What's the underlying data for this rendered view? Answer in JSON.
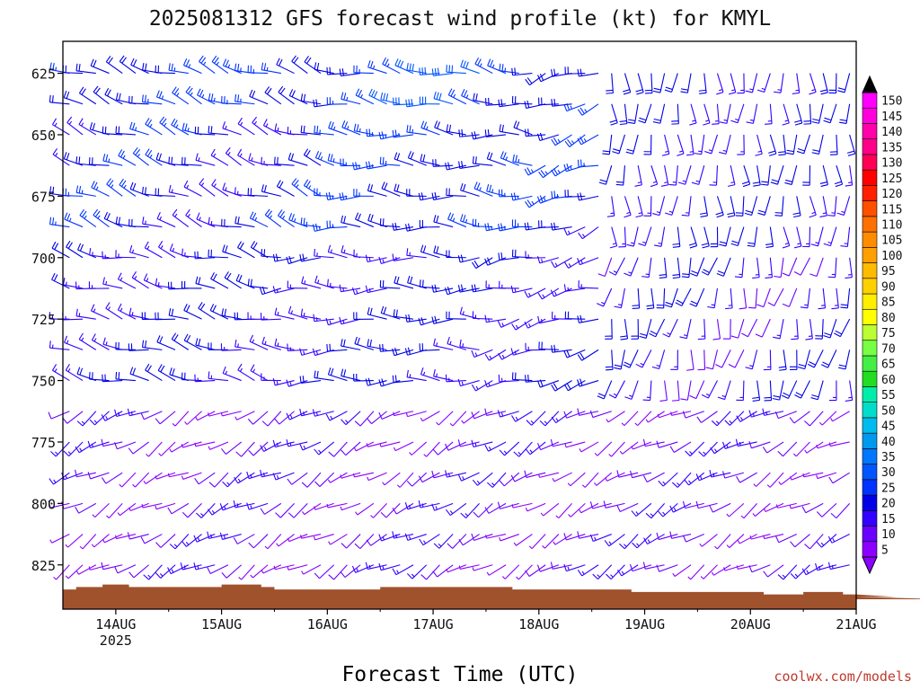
{
  "chart_data": {
    "type": "wind_barb_time_height",
    "title": "2025081312 GFS forecast wind profile (kt) for KMYL",
    "xlabel": "Forecast Time (UTC)",
    "ylabel": "",
    "credit": "coolwx.com/models",
    "units": "kt",
    "y_levels_hpa": [
      625,
      650,
      675,
      700,
      725,
      750,
      775,
      800,
      825
    ],
    "x_ticks": [
      {
        "label": "14AUG",
        "sublabel": "2025",
        "day": 1
      },
      {
        "label": "15AUG",
        "sublabel": "",
        "day": 2
      },
      {
        "label": "16AUG",
        "sublabel": "",
        "day": 3
      },
      {
        "label": "17AUG",
        "sublabel": "",
        "day": 4
      },
      {
        "label": "18AUG",
        "sublabel": "",
        "day": 5
      },
      {
        "label": "19AUG",
        "sublabel": "",
        "day": 6
      },
      {
        "label": "20AUG",
        "sublabel": "",
        "day": 7
      },
      {
        "label": "21AUG",
        "sublabel": "",
        "day": 8
      }
    ],
    "xlim_days": [
      0.5,
      8.0
    ],
    "ylim_hpa": [
      612,
      843
    ],
    "timestep_hours": 3,
    "colorbar": {
      "labels": [
        5,
        10,
        15,
        20,
        25,
        30,
        35,
        40,
        45,
        50,
        55,
        60,
        65,
        70,
        75,
        80,
        85,
        90,
        95,
        100,
        105,
        110,
        115,
        120,
        125,
        130,
        135,
        140,
        145,
        150
      ],
      "colors": [
        "#8b00ff",
        "#6a00ff",
        "#3300ff",
        "#0000e6",
        "#0033ff",
        "#0055ff",
        "#0077ff",
        "#0099ee",
        "#00bbee",
        "#00ddcc",
        "#00eeaa",
        "#22dd22",
        "#44ee44",
        "#77ff44",
        "#bbff33",
        "#ffff00",
        "#ffee00",
        "#ffd000",
        "#ffbb00",
        "#ffa000",
        "#ff8c00",
        "#ff7000",
        "#ff5000",
        "#ff2000",
        "#ff0000",
        "#ff0055",
        "#ff0088",
        "#ff00aa",
        "#ff00dd",
        "#ff00ff"
      ],
      "arrow_top": "#000000",
      "arrow_bottom": "#8b00ff"
    },
    "terrain": {
      "color": "#a0522d",
      "pressure_hpa": [
        835,
        834,
        834,
        833,
        833,
        834,
        834,
        834,
        834,
        834,
        834,
        834,
        833,
        833,
        833,
        834,
        835,
        835,
        835,
        835,
        835,
        835,
        835,
        835,
        834,
        834,
        834,
        834,
        834,
        834,
        834,
        834,
        834,
        834,
        835,
        835,
        835,
        835,
        835,
        835,
        835,
        835,
        835,
        836,
        836,
        836,
        836,
        836,
        836,
        836,
        836,
        836,
        836,
        837,
        837,
        837,
        836,
        836,
        836,
        837,
        837,
        837,
        837,
        838,
        838,
        838,
        838,
        839,
        839
      ]
    },
    "wind_regimes": [
      {
        "days": [
          0.5,
          3.0
        ],
        "p": [
          612,
          640
        ],
        "dir": 290,
        "speed": 25
      },
      {
        "days": [
          3.0,
          5.0
        ],
        "p": [
          612,
          640
        ],
        "dir": 280,
        "speed": 28
      },
      {
        "days": [
          5.0,
          5.6
        ],
        "p": [
          612,
          640
        ],
        "dir": 250,
        "speed": 25
      },
      {
        "days": [
          5.6,
          8.0
        ],
        "p": [
          612,
          640
        ],
        "dir": 180,
        "speed": 20
      },
      {
        "days": [
          0.5,
          3.0
        ],
        "p": [
          640,
          690
        ],
        "dir": 290,
        "speed": 22
      },
      {
        "days": [
          3.0,
          5.0
        ],
        "p": [
          640,
          690
        ],
        "dir": 275,
        "speed": 25
      },
      {
        "days": [
          5.0,
          5.6
        ],
        "p": [
          640,
          690
        ],
        "dir": 250,
        "speed": 22
      },
      {
        "days": [
          5.6,
          8.0
        ],
        "p": [
          640,
          690
        ],
        "dir": 180,
        "speed": 20
      },
      {
        "days": [
          0.5,
          2.5
        ],
        "p": [
          690,
          760
        ],
        "dir": 285,
        "speed": 20
      },
      {
        "days": [
          2.5,
          4.5
        ],
        "p": [
          690,
          760
        ],
        "dir": 270,
        "speed": 20
      },
      {
        "days": [
          4.5,
          5.6
        ],
        "p": [
          690,
          760
        ],
        "dir": 255,
        "speed": 20
      },
      {
        "days": [
          5.6,
          8.0
        ],
        "p": [
          690,
          760
        ],
        "dir": 190,
        "speed": 18
      },
      {
        "days": [
          0.5,
          8.0
        ],
        "p": [
          760,
          843
        ],
        "dir": 240,
        "speed": 12
      }
    ]
  }
}
